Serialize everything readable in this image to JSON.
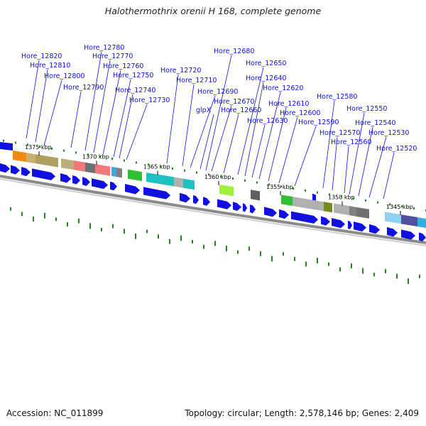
{
  "title": "Halothermothrix orenii H 168, complete genome",
  "footer": {
    "accession": "Accession: NC_011899",
    "summary": "Topology: circular; Length: 2,578,146 bp; Genes: 2,409"
  },
  "ticks": [
    "1375 kbp",
    "1370 kbp",
    "1365 kbp",
    "1360 kbp",
    "1355 kbp",
    "1350 kbp",
    "1345 kbp"
  ],
  "gene_labels": [
    "Hore_12820",
    "Hore_12810",
    "Hore_12800",
    "Hore_12790",
    "Hore_12780",
    "Hore_12770",
    "Hore_12760",
    "Hore_12750",
    "Hore_12740",
    "Hore_12730",
    "Hore_12720",
    "Hore_12710",
    "Hore_12690",
    "glpX",
    "Hore_12680",
    "Hore_12670",
    "Hore_12660",
    "Hore_12650",
    "Hore_12640",
    "Hore_12630",
    "Hore_12620",
    "Hore_12610",
    "Hore_12600",
    "Hore_12590",
    "Hore_12580",
    "Hore_12570",
    "Hore_12560",
    "Hore_12550",
    "Hore_12540",
    "Hore_12530",
    "Hore_12520"
  ],
  "colors": {
    "gene": "#1010e0",
    "label": "#1010d8",
    "backbone": "#8a8a8a",
    "gc_mark": "#1a8a1a"
  }
}
